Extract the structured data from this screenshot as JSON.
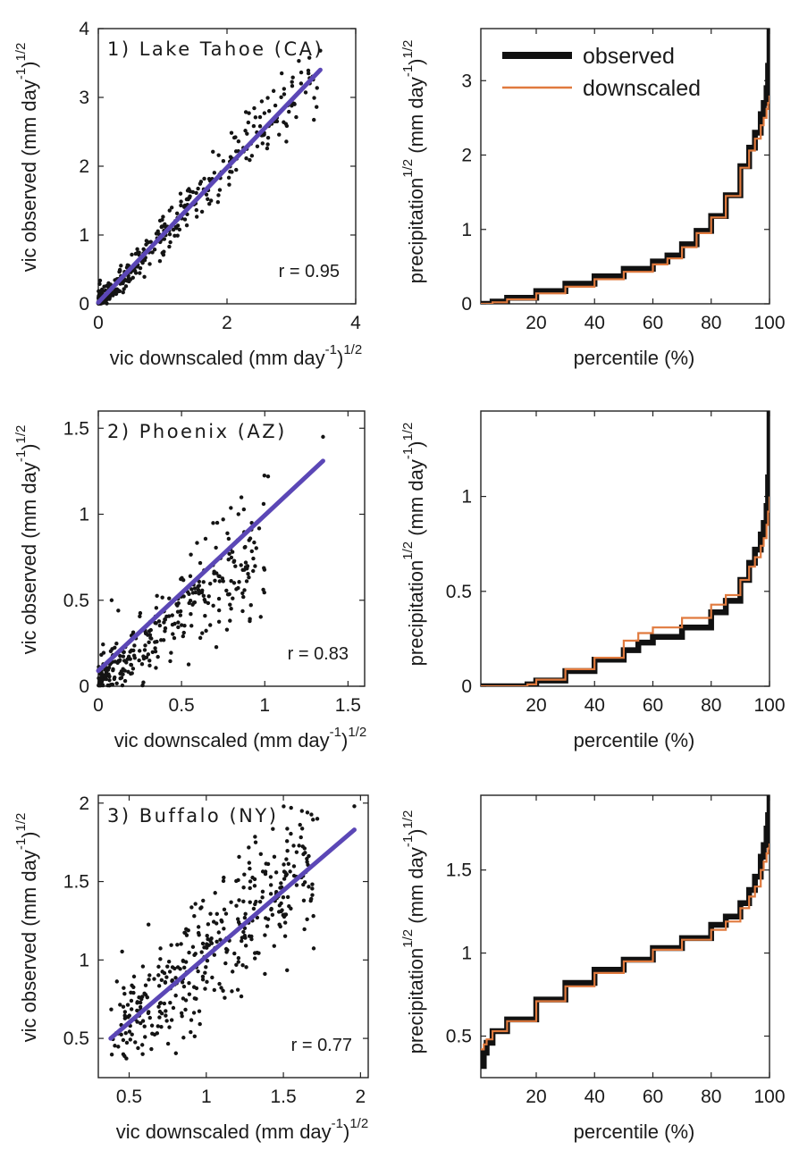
{
  "figure": {
    "colors": {
      "points": "#141414",
      "fit_line": "#5b47b6",
      "observed": "#111111",
      "downscaled": "#e07a3e"
    },
    "legend": {
      "position": "top-left",
      "entries": [
        "observed",
        "downscaled"
      ]
    }
  },
  "chart_data": [
    {
      "type": "scatter",
      "id": "scatter-1",
      "site_label": "1) Lake Tahoe (CA)",
      "r_label": "r = 0.95",
      "xlabel_main": "vic downscaled (mm day",
      "xlabel_sup1": "-1",
      "xlabel_close": ")",
      "xlabel_sup2": "1/2",
      "ylabel_main": "vic observed (mm day",
      "ylabel_sup1": "-1",
      "ylabel_close": ")",
      "ylabel_sup2": "1/2",
      "xlim": [
        0,
        4
      ],
      "ylim": [
        0,
        4
      ],
      "xticks": [
        {
          "v": 0,
          "label": "0"
        },
        {
          "v": 2,
          "label": "2"
        },
        {
          "v": 4,
          "label": "4"
        }
      ],
      "yticks": [
        {
          "v": 0,
          "label": "0"
        },
        {
          "v": 1,
          "label": "1"
        },
        {
          "v": 2,
          "label": "2"
        },
        {
          "v": 3,
          "label": "3"
        },
        {
          "v": 4,
          "label": "4"
        }
      ],
      "fit_line": {
        "x": [
          0.0,
          3.45
        ],
        "y": [
          0.02,
          3.4
        ]
      },
      "cloud": {
        "n": 360,
        "xmin": 0.0,
        "xmax": 3.4,
        "skew": 1.8,
        "slope": 0.98,
        "intercept": 0.02,
        "noise_base": 0.08,
        "noise_scale": 0.07,
        "seed": 11
      },
      "outliers": [
        {
          "x": 3.45,
          "y": 3.68
        },
        {
          "x": 2.85,
          "y": 3.35
        },
        {
          "x": 3.05,
          "y": 2.9
        }
      ]
    },
    {
      "type": "line",
      "id": "cdf-1",
      "xlabel": "percentile (%)",
      "ylabel_main": "precipitation",
      "ylabel_sup1": "1/2",
      "ylabel_mid": " (mm day",
      "ylabel_sup2": "-1",
      "ylabel_close": ")",
      "ylabel_sup3": "1/2",
      "xlim": [
        1,
        100
      ],
      "ylim": [
        0,
        3.7
      ],
      "xticks": [
        {
          "v": 20,
          "label": "20"
        },
        {
          "v": 40,
          "label": "40"
        },
        {
          "v": 60,
          "label": "60"
        },
        {
          "v": 80,
          "label": "80"
        },
        {
          "v": 100,
          "label": "100"
        }
      ],
      "yticks": [
        {
          "v": 0,
          "label": "0"
        },
        {
          "v": 1,
          "label": "1"
        },
        {
          "v": 2,
          "label": "2"
        },
        {
          "v": 3,
          "label": "3"
        }
      ],
      "series": [
        {
          "name": "observed",
          "x": [
            1,
            5,
            10,
            20,
            30,
            40,
            50,
            60,
            65,
            70,
            75,
            80,
            85,
            90,
            93,
            95,
            97,
            98,
            99,
            99.5,
            100
          ],
          "y": [
            0,
            0.03,
            0.08,
            0.17,
            0.27,
            0.37,
            0.47,
            0.57,
            0.65,
            0.8,
            0.98,
            1.18,
            1.46,
            1.85,
            2.1,
            2.3,
            2.55,
            2.7,
            2.9,
            3.2,
            3.7
          ]
        },
        {
          "name": "downscaled",
          "x": [
            1,
            5,
            10,
            20,
            30,
            40,
            50,
            60,
            65,
            70,
            75,
            80,
            85,
            90,
            93,
            95,
            97,
            98,
            99,
            99.5,
            100
          ],
          "y": [
            0,
            0.02,
            0.06,
            0.14,
            0.23,
            0.33,
            0.43,
            0.53,
            0.61,
            0.76,
            0.95,
            1.16,
            1.45,
            1.83,
            2.06,
            2.22,
            2.4,
            2.5,
            2.62,
            2.7,
            2.8
          ]
        }
      ]
    },
    {
      "type": "scatter",
      "id": "scatter-2",
      "site_label": "2) Phoenix (AZ)",
      "r_label": "r = 0.83",
      "xlabel_main": "vic downscaled (mm day",
      "xlabel_sup1": "-1",
      "xlabel_close": ")",
      "xlabel_sup2": "1/2",
      "ylabel_main": "vic observed (mm day",
      "ylabel_sup1": "-1",
      "ylabel_close": ")",
      "ylabel_sup2": "1/2",
      "xlim": [
        0,
        1.6
      ],
      "ylim": [
        0,
        1.6
      ],
      "xticks": [
        {
          "v": 0,
          "label": "0"
        },
        {
          "v": 0.5,
          "label": "0.5"
        },
        {
          "v": 1,
          "label": "1"
        },
        {
          "v": 1.5,
          "label": "1.5"
        }
      ],
      "yticks": [
        {
          "v": 0,
          "label": "0"
        },
        {
          "v": 0.5,
          "label": "0.5"
        },
        {
          "v": 1,
          "label": "1"
        },
        {
          "v": 1.5,
          "label": "1.5"
        }
      ],
      "fit_line": {
        "x": [
          0.0,
          1.35
        ],
        "y": [
          0.09,
          1.31
        ]
      },
      "cloud": {
        "n": 320,
        "xmin": 0.0,
        "xmax": 1.0,
        "skew": 1.4,
        "slope": 0.78,
        "intercept": 0.04,
        "noise_base": 0.06,
        "noise_scale": 0.12,
        "seed": 23
      },
      "outliers": [
        {
          "x": 1.35,
          "y": 1.45
        },
        {
          "x": 1.02,
          "y": 1.22
        },
        {
          "x": 0.08,
          "y": 0.5
        },
        {
          "x": 0.12,
          "y": 0.44
        },
        {
          "x": 0.75,
          "y": 0.97
        }
      ]
    },
    {
      "type": "line",
      "id": "cdf-2",
      "xlabel": "percentile (%)",
      "ylabel_main": "precipitation",
      "ylabel_sup1": "1/2",
      "ylabel_mid": " (mm day",
      "ylabel_sup2": "-1",
      "ylabel_close": ")",
      "ylabel_sup3": "1/2",
      "xlim": [
        1,
        100
      ],
      "ylim": [
        0,
        1.45
      ],
      "xticks": [
        {
          "v": 20,
          "label": "20"
        },
        {
          "v": 40,
          "label": "40"
        },
        {
          "v": 60,
          "label": "60"
        },
        {
          "v": 80,
          "label": "80"
        },
        {
          "v": 100,
          "label": "100"
        }
      ],
      "yticks": [
        {
          "v": 0,
          "label": "0"
        },
        {
          "v": 0.5,
          "label": "0.5"
        },
        {
          "v": 1,
          "label": "1"
        }
      ],
      "series": [
        {
          "name": "observed",
          "x": [
            1,
            15,
            17,
            20,
            30,
            40,
            50,
            55,
            60,
            70,
            80,
            85,
            90,
            93,
            95,
            97,
            98,
            99,
            99.5,
            100
          ],
          "y": [
            0,
            0,
            0.01,
            0.03,
            0.08,
            0.14,
            0.19,
            0.23,
            0.26,
            0.31,
            0.39,
            0.45,
            0.56,
            0.65,
            0.72,
            0.8,
            0.86,
            0.95,
            1.1,
            1.45
          ]
        },
        {
          "name": "downscaled",
          "x": [
            1,
            15,
            17,
            20,
            30,
            40,
            50,
            55,
            60,
            70,
            80,
            85,
            90,
            93,
            95,
            97,
            98,
            99,
            99.5,
            100
          ],
          "y": [
            0,
            0,
            0.01,
            0.035,
            0.09,
            0.15,
            0.24,
            0.28,
            0.31,
            0.36,
            0.43,
            0.48,
            0.56,
            0.63,
            0.68,
            0.74,
            0.78,
            0.85,
            0.92,
            1.0
          ]
        }
      ]
    },
    {
      "type": "scatter",
      "id": "scatter-3",
      "site_label": "3) Buffalo (NY)",
      "r_label": "r = 0.77",
      "xlabel_main": "vic downscaled (mm day",
      "xlabel_sup1": "-1",
      "xlabel_close": ")",
      "xlabel_sup2": "1/2",
      "ylabel_main": "vic observed (mm day",
      "ylabel_sup1": "-1",
      "ylabel_close": ")",
      "ylabel_sup2": "1/2",
      "xlim": [
        0.3,
        2.05
      ],
      "ylim": [
        0.25,
        2.05
      ],
      "xticks": [
        {
          "v": 0.5,
          "label": "0.5"
        },
        {
          "v": 1,
          "label": "1"
        },
        {
          "v": 1.5,
          "label": "1.5"
        },
        {
          "v": 2,
          "label": "2"
        }
      ],
      "yticks": [
        {
          "v": 0.5,
          "label": "0.5"
        },
        {
          "v": 1,
          "label": "1"
        },
        {
          "v": 1.5,
          "label": "1.5"
        },
        {
          "v": 2,
          "label": "2"
        }
      ],
      "fit_line": {
        "x": [
          0.38,
          1.96
        ],
        "y": [
          0.5,
          1.83
        ]
      },
      "cloud": {
        "n": 380,
        "xmin": 0.38,
        "xmax": 1.7,
        "skew": 1.0,
        "slope": 0.84,
        "intercept": 0.18,
        "noise_base": 0.14,
        "noise_scale": 0.05,
        "seed": 37
      },
      "outliers": [
        {
          "x": 1.96,
          "y": 1.98
        },
        {
          "x": 1.62,
          "y": 1.95
        },
        {
          "x": 1.55,
          "y": 1.97
        },
        {
          "x": 1.32,
          "y": 1.75
        },
        {
          "x": 1.72,
          "y": 1.9
        }
      ]
    },
    {
      "type": "line",
      "id": "cdf-3",
      "xlabel": "percentile (%)",
      "ylabel_main": "precipitation",
      "ylabel_sup1": "1/2",
      "ylabel_mid": " (mm day",
      "ylabel_sup2": "-1",
      "ylabel_close": ")",
      "ylabel_sup3": "1/2",
      "xlim": [
        1,
        100
      ],
      "ylim": [
        0.25,
        1.95
      ],
      "xticks": [
        {
          "v": 20,
          "label": "20"
        },
        {
          "v": 40,
          "label": "40"
        },
        {
          "v": 60,
          "label": "60"
        },
        {
          "v": 80,
          "label": "80"
        },
        {
          "v": 100,
          "label": "100"
        }
      ],
      "yticks": [
        {
          "v": 0.5,
          "label": "0.5"
        },
        {
          "v": 1,
          "label": "1"
        },
        {
          "v": 1.5,
          "label": "1.5"
        }
      ],
      "series": [
        {
          "name": "observed",
          "x": [
            1,
            2,
            3,
            5,
            10,
            20,
            30,
            40,
            50,
            60,
            70,
            80,
            85,
            90,
            93,
            95,
            97,
            98,
            99,
            99.5,
            100
          ],
          "y": [
            0.32,
            0.4,
            0.46,
            0.53,
            0.6,
            0.72,
            0.82,
            0.9,
            0.96,
            1.03,
            1.09,
            1.17,
            1.22,
            1.3,
            1.38,
            1.46,
            1.58,
            1.65,
            1.75,
            1.83,
            1.95
          ]
        },
        {
          "name": "downscaled",
          "x": [
            1,
            2,
            3,
            5,
            10,
            20,
            30,
            40,
            50,
            60,
            70,
            80,
            85,
            90,
            93,
            95,
            97,
            98,
            99,
            99.5,
            100
          ],
          "y": [
            0.42,
            0.45,
            0.48,
            0.53,
            0.59,
            0.71,
            0.8,
            0.88,
            0.95,
            1.02,
            1.08,
            1.14,
            1.19,
            1.27,
            1.34,
            1.4,
            1.5,
            1.55,
            1.6,
            1.63,
            1.66
          ]
        }
      ]
    }
  ]
}
